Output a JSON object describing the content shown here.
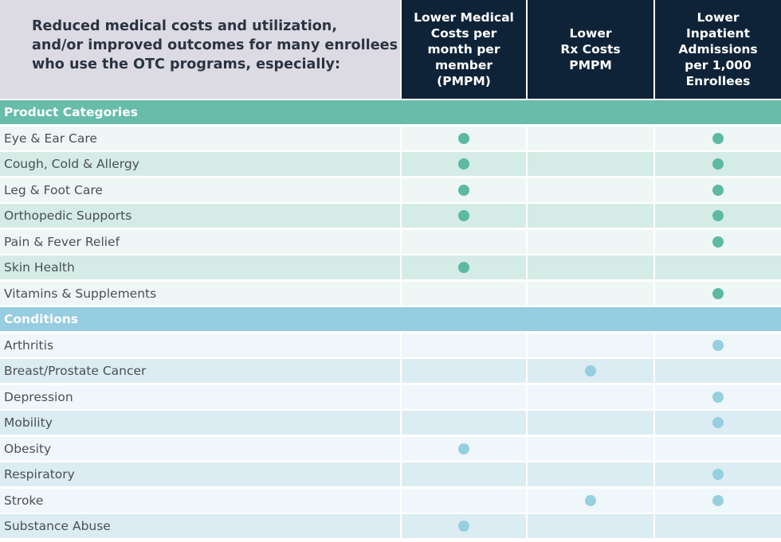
{
  "header": {
    "intro_lines": [
      "Reduced medical costs and utilization,",
      "and/or improved outcomes for many enrollees",
      "who use the OTC programs, especially:"
    ],
    "columns": [
      {
        "key": "medical",
        "lines": [
          "Lower Medical",
          "Costs per",
          "month per",
          "member",
          "(PMPM)"
        ]
      },
      {
        "key": "rx",
        "lines": [
          "Lower",
          "Rx Costs",
          "PMPM"
        ]
      },
      {
        "key": "inpatient",
        "lines": [
          "Lower",
          "Inpatient",
          "Admissions",
          "per 1,000",
          "Enrollees"
        ]
      }
    ]
  },
  "colors": {
    "header_bg": "#dcdae3",
    "column_header_bg": "#0f2338",
    "product_bar": "#67bcaa",
    "product_row_light": "#eef7f5",
    "product_row_dark": "#d4ece5",
    "product_dot": "#5db9a4",
    "condition_bar": "#96cde0",
    "condition_row_light": "#eff7fb",
    "condition_row_dark": "#dcecf3",
    "condition_dot": "#96cfe0"
  },
  "sections": [
    {
      "key": "product",
      "title": "Product Categories",
      "rows": [
        {
          "label": "Eye & Ear Care",
          "marks": [
            true,
            false,
            true
          ]
        },
        {
          "label": "Cough, Cold & Allergy",
          "marks": [
            true,
            false,
            true
          ]
        },
        {
          "label": "Leg & Foot Care",
          "marks": [
            true,
            false,
            true
          ]
        },
        {
          "label": "Orthopedic Supports",
          "marks": [
            true,
            false,
            true
          ]
        },
        {
          "label": "Pain & Fever Relief",
          "marks": [
            false,
            false,
            true
          ]
        },
        {
          "label": "Skin Health",
          "marks": [
            true,
            false,
            false
          ]
        },
        {
          "label": "Vitamins & Supplements",
          "marks": [
            false,
            false,
            true
          ]
        }
      ]
    },
    {
      "key": "conditions",
      "title": "Conditions",
      "rows": [
        {
          "label": "Arthritis",
          "marks": [
            false,
            false,
            true
          ]
        },
        {
          "label": "Breast/Prostate Cancer",
          "marks": [
            false,
            true,
            false
          ]
        },
        {
          "label": "Depression",
          "marks": [
            false,
            false,
            true
          ]
        },
        {
          "label": "Mobility",
          "marks": [
            false,
            false,
            true
          ]
        },
        {
          "label": "Obesity",
          "marks": [
            true,
            false,
            false
          ]
        },
        {
          "label": "Respiratory",
          "marks": [
            false,
            false,
            true
          ]
        },
        {
          "label": "Stroke",
          "marks": [
            false,
            true,
            true
          ]
        },
        {
          "label": "Substance Abuse",
          "marks": [
            true,
            false,
            false
          ]
        }
      ]
    }
  ]
}
